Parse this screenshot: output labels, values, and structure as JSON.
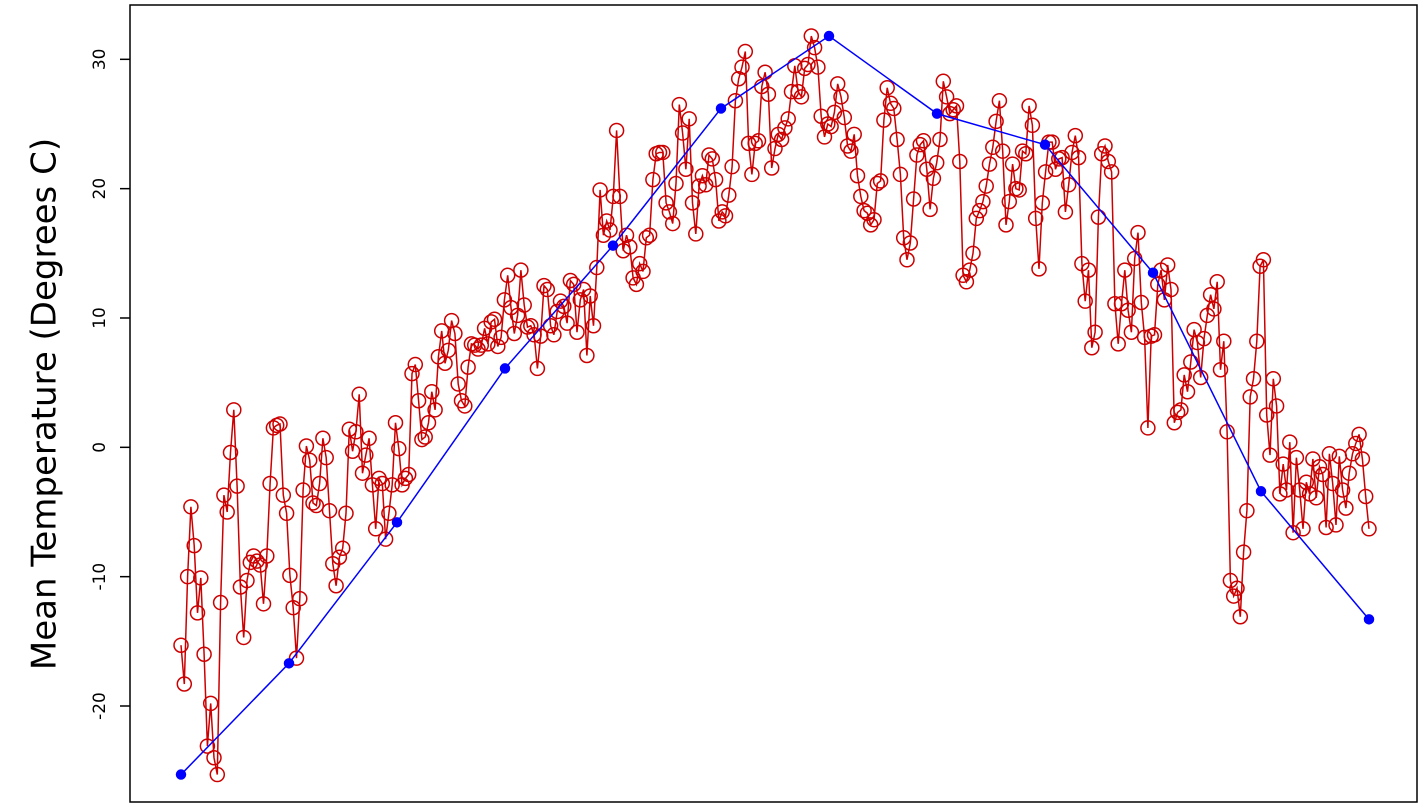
{
  "chart_data": {
    "type": "line",
    "y_label": "Mean Temperature (Degrees C)",
    "ylim": [
      -27.5,
      34.2
    ],
    "yticks": [
      -20,
      -10,
      0,
      10,
      20,
      30
    ],
    "series": [
      {
        "color": "#cc0000",
        "marker": "open-circle",
        "values": [
          -15.3,
          -18.3,
          -10,
          -4.6,
          -7.6,
          -12.8,
          -10.1,
          -16,
          -23.1,
          -19.8,
          -24,
          -25.3,
          -12,
          -3.7,
          -5,
          -0.4,
          2.9,
          -3,
          -10.8,
          -14.7,
          -10.3,
          -8.9,
          -8.4,
          -8.8,
          -9.1,
          -12.1,
          -8.4,
          -2.8,
          1.5,
          1.7,
          1.8,
          -3.7,
          -5.1,
          -9.9,
          -12.4,
          -16.3,
          -11.7,
          -3.3,
          0.1,
          -1,
          -4.3,
          -4.5,
          -2.8,
          0.7,
          -0.8,
          -4.9,
          -9,
          -10.7,
          -8.5,
          -7.8,
          -5.1,
          1.4,
          -0.3,
          1.2,
          4.1,
          -2,
          -0.6,
          0.7,
          -2.9,
          -6.3,
          -2.4,
          -2.8,
          -7.1,
          -5.1,
          -2.9,
          1.9,
          -0.1,
          -2.9,
          -2.4,
          -2.1,
          5.7,
          6.4,
          3.6,
          0.6,
          0.8,
          1.9,
          4.3,
          2.9,
          7,
          9,
          6.5,
          7.5,
          9.8,
          8.8,
          4.9,
          3.6,
          3.2,
          6.2,
          8,
          7.9,
          7.6,
          7.9,
          9.2,
          8,
          9.7,
          9.9,
          7.8,
          8.5,
          11.4,
          13.3,
          10.8,
          8.8,
          10.2,
          13.7,
          11,
          9.3,
          9.4,
          8.7,
          6.1,
          8.6,
          12.5,
          12.2,
          9.4,
          8.7,
          10.5,
          11.3,
          10.9,
          9.6,
          12.9,
          12.6,
          8.9,
          11.4,
          12.2,
          7.1,
          11.7,
          9.4,
          13.9,
          19.9,
          16.4,
          17.5,
          16.8,
          19.4,
          24.5,
          19.4,
          15.2,
          16.4,
          15.5,
          13.1,
          12.6,
          14.2,
          13.6,
          16.2,
          16.4,
          20.7,
          22.7,
          22.8,
          22.8,
          18.9,
          18.2,
          17.3,
          20.4,
          26.5,
          24.3,
          21.5,
          25.4,
          18.9,
          16.5,
          20.2,
          21,
          20.3,
          22.6,
          22.3,
          20.7,
          17.5,
          18.2,
          17.9,
          19.5,
          21.7,
          26.8,
          28.5,
          29.4,
          30.6,
          23.5,
          21.1,
          23.5,
          23.7,
          27.9,
          29,
          27.3,
          21.6,
          23.1,
          24.2,
          23.8,
          24.7,
          25.4,
          27.5,
          29.5,
          27.5,
          27.1,
          29.3,
          29.6,
          31.8,
          30.9,
          29.4,
          25.6,
          24,
          25,
          24.8,
          25.9,
          28.1,
          27.1,
          25.5,
          23.3,
          22.9,
          24.2,
          21,
          19.4,
          18.3,
          18.1,
          17.2,
          17.6,
          20.4,
          20.6,
          25.3,
          27.8,
          26.6,
          26.2,
          23.8,
          21.1,
          16.2,
          14.5,
          15.8,
          19.2,
          22.6,
          23.4,
          23.7,
          21.5,
          18.4,
          20.8,
          22,
          23.8,
          28.3,
          27.1,
          25.8,
          26.1,
          26.4,
          22.1,
          13.3,
          12.8,
          13.7,
          15,
          17.7,
          18.3,
          19,
          20.2,
          21.9,
          23.2,
          25.2,
          26.8,
          22.9,
          17.2,
          19,
          21.9,
          20,
          19.9,
          22.9,
          22.7,
          26.4,
          24.9,
          17.7,
          13.8,
          18.9,
          21.3,
          23.6,
          23.6,
          21.5,
          22.3,
          22.4,
          18.2,
          20.3,
          22.8,
          24.1,
          22.4,
          14.2,
          11.3,
          13.7,
          7.7,
          8.9,
          17.8,
          22.7,
          23.3,
          22.1,
          21.3,
          11.1,
          8,
          11.1,
          13.7,
          10.6,
          8.9,
          14.6,
          16.6,
          11.2,
          8.5,
          1.5,
          8.6,
          8.7,
          12.6,
          13.7,
          11.4,
          14.1,
          12.2,
          1.9,
          2.7,
          2.9,
          5.6,
          4.3,
          6.6,
          9.1,
          8.1,
          5.4,
          8.4,
          10.2,
          11.8,
          10.7,
          12.8,
          6,
          8.2,
          1.2,
          -10.3,
          -11.5,
          -10.9,
          -13.1,
          -8.1,
          -4.9,
          3.9,
          5.3,
          8.2,
          14,
          14.5,
          2.5,
          -0.6,
          5.3,
          3.2,
          -3.6,
          -1.3,
          -3.3,
          0.4,
          -6.6,
          -0.8,
          -3.3,
          -6.3,
          -2.7,
          -3.6,
          -0.9,
          -3.9,
          -1.5,
          -2.1,
          -6.2,
          -0.5,
          -2.8,
          -6,
          -0.7,
          -3.3,
          -4.7,
          -2,
          -0.5,
          0.3,
          1,
          -0.9,
          -3.8,
          -6.3
        ]
      },
      {
        "color": "#0000ff",
        "marker": "filled-circle",
        "values": [
          -25.3,
          -16.7,
          -5.8,
          6.1,
          15.6,
          26.2,
          31.8,
          25.8,
          23.4,
          13.5,
          -3.4,
          -13.3
        ]
      }
    ]
  }
}
